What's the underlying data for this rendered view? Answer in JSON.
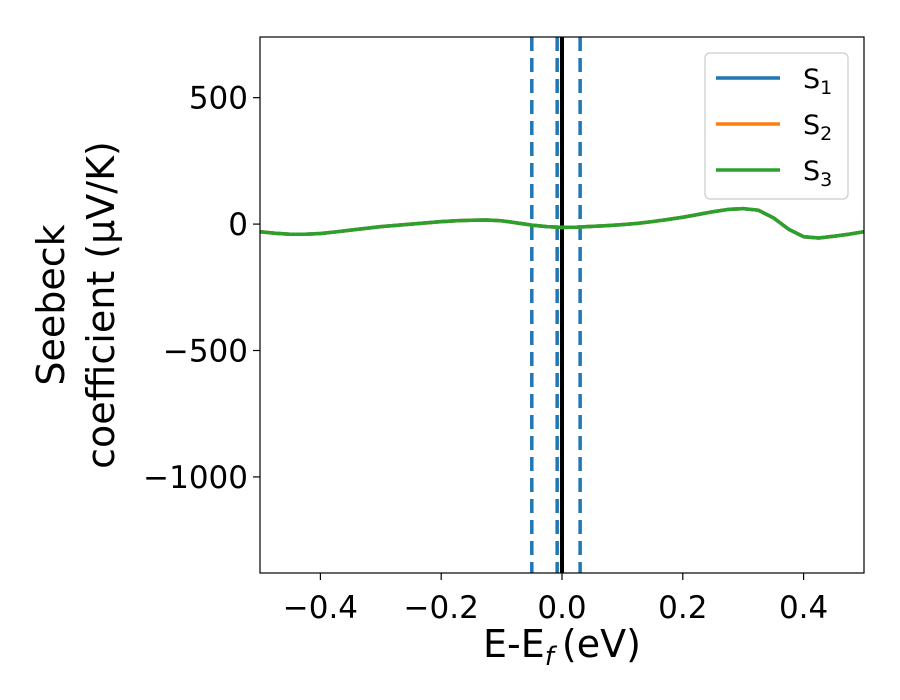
{
  "chart_data": {
    "type": "line",
    "title": "",
    "xlabel": "E-E",
    "xlabel_subscript": "f",
    "xlabel_unit": "(eV)",
    "ylabel_line1": "Seebeck",
    "ylabel_line2": "coefficient  (μV/K)",
    "xlim": [
      -0.5,
      0.5
    ],
    "ylim": [
      -1380,
      740
    ],
    "xticks": [
      -0.4,
      -0.2,
      0.0,
      0.2,
      0.4
    ],
    "xtick_labels": [
      "−0.4",
      "−0.2",
      "0.0",
      "0.2",
      "0.4"
    ],
    "yticks": [
      500,
      0,
      -500,
      -1000
    ],
    "ytick_labels": [
      "500",
      "0",
      "−500",
      "−1000"
    ],
    "grid": false,
    "legend_position": "top-right",
    "x": [
      -0.5,
      -0.475,
      -0.45,
      -0.425,
      -0.4,
      -0.375,
      -0.35,
      -0.325,
      -0.3,
      -0.275,
      -0.25,
      -0.225,
      -0.2,
      -0.175,
      -0.15,
      -0.125,
      -0.1,
      -0.075,
      -0.05,
      -0.025,
      0.0,
      0.025,
      0.05,
      0.075,
      0.1,
      0.125,
      0.15,
      0.175,
      0.2,
      0.225,
      0.25,
      0.275,
      0.3,
      0.325,
      0.35,
      0.375,
      0.4,
      0.425,
      0.45,
      0.475,
      0.5
    ],
    "series": [
      {
        "name": "S",
        "sub": "1",
        "color": "#1f77b4",
        "values": [
          -30,
          -36,
          -40,
          -40,
          -37,
          -31,
          -24,
          -17,
          -10,
          -5,
          0,
          5,
          10,
          13,
          15,
          16,
          13,
          5,
          -4,
          -10,
          -13,
          -12,
          -9,
          -6,
          -2,
          3,
          10,
          18,
          27,
          38,
          49,
          58,
          61,
          55,
          25,
          -20,
          -50,
          -55,
          -48,
          -40,
          -30
        ]
      },
      {
        "name": "S",
        "sub": "2",
        "color": "#ff7f0e",
        "values": [
          -30,
          -36,
          -40,
          -40,
          -37,
          -31,
          -24,
          -17,
          -10,
          -5,
          0,
          5,
          10,
          13,
          15,
          16,
          13,
          5,
          -4,
          -10,
          -13,
          -12,
          -9,
          -6,
          -2,
          3,
          10,
          18,
          27,
          38,
          49,
          58,
          61,
          55,
          25,
          -20,
          -50,
          -55,
          -48,
          -40,
          -30
        ]
      },
      {
        "name": "S",
        "sub": "3",
        "color": "#2ca02c",
        "values": [
          -30,
          -36,
          -40,
          -40,
          -37,
          -31,
          -24,
          -17,
          -10,
          -5,
          0,
          5,
          10,
          13,
          15,
          16,
          13,
          5,
          -4,
          -10,
          -13,
          -12,
          -9,
          -6,
          -2,
          3,
          10,
          18,
          27,
          38,
          49,
          58,
          61,
          55,
          25,
          -20,
          -50,
          -55,
          -48,
          -40,
          -30
        ]
      }
    ],
    "vlines": [
      {
        "x": -0.05,
        "style": "dashed",
        "color": "#1f77b4"
      },
      {
        "x": -0.008,
        "style": "dashed",
        "color": "#1f77b4"
      },
      {
        "x": 0.03,
        "style": "dashed",
        "color": "#1f77b4"
      },
      {
        "x": 0.0,
        "style": "solid",
        "color": "#000000"
      }
    ]
  }
}
